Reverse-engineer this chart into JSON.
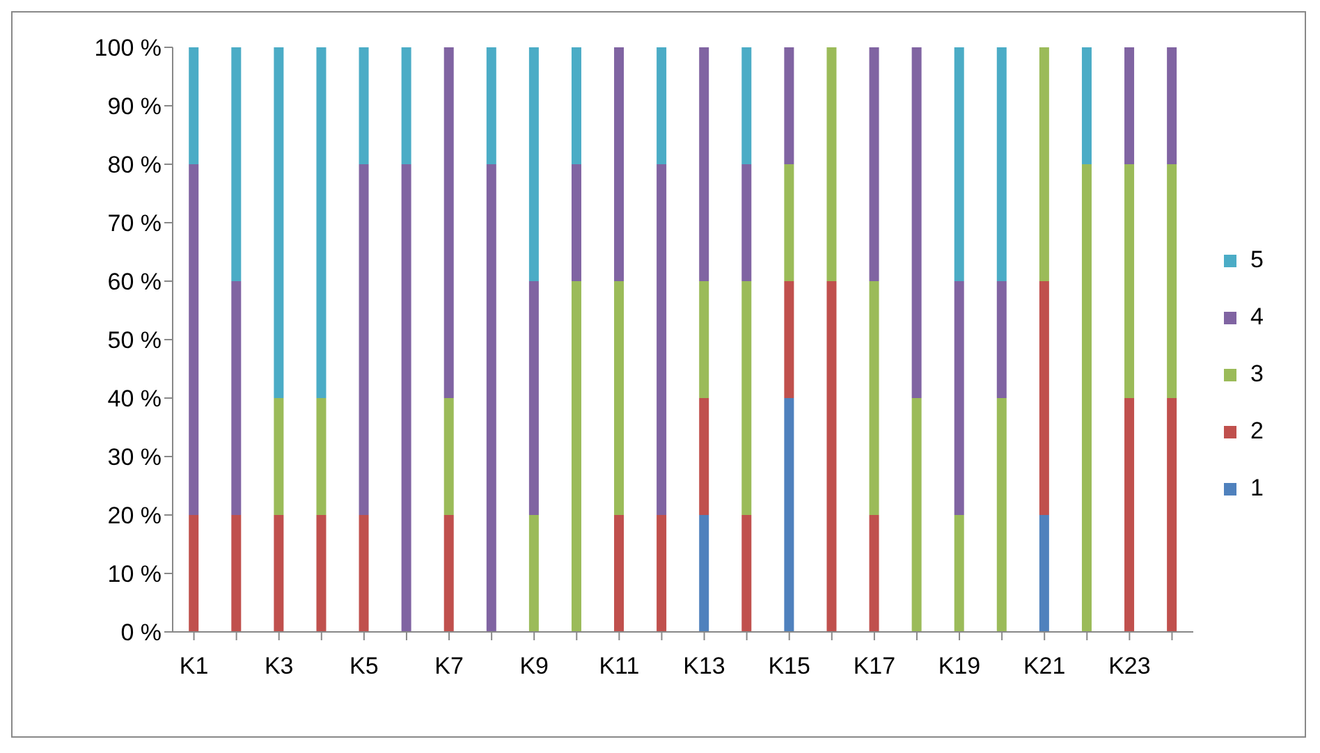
{
  "chart_data": {
    "type": "bar",
    "stacked": true,
    "categories": [
      "K1",
      null,
      "K3",
      null,
      "K5",
      null,
      "K7",
      null,
      "K9",
      null,
      "K11",
      null,
      "K13",
      null,
      "K15",
      null,
      "K17",
      null,
      "K19",
      null,
      "K21",
      null,
      "K23",
      null
    ],
    "series": [
      {
        "name": "1",
        "color": "#4f81bd",
        "values": [
          0,
          0,
          0,
          0,
          0,
          0,
          0,
          0,
          0,
          0,
          0,
          0,
          20,
          0,
          40,
          0,
          0,
          0,
          0,
          0,
          20,
          0,
          0,
          0
        ]
      },
      {
        "name": "2",
        "color": "#c0504d",
        "values": [
          20,
          20,
          20,
          20,
          20,
          0,
          20,
          0,
          0,
          0,
          20,
          20,
          20,
          20,
          20,
          60,
          20,
          0,
          0,
          0,
          40,
          0,
          40,
          40
        ]
      },
      {
        "name": "3",
        "color": "#9bbb59",
        "values": [
          0,
          0,
          20,
          20,
          0,
          0,
          20,
          0,
          20,
          60,
          40,
          0,
          20,
          40,
          20,
          40,
          40,
          40,
          20,
          40,
          40,
          80,
          40,
          40
        ]
      },
      {
        "name": "4",
        "color": "#8064a2",
        "values": [
          60,
          40,
          0,
          0,
          60,
          80,
          60,
          80,
          40,
          20,
          40,
          60,
          40,
          20,
          20,
          0,
          40,
          60,
          40,
          20,
          0,
          0,
          20,
          20
        ]
      },
      {
        "name": "5",
        "color": "#4bacc6",
        "values": [
          20,
          40,
          60,
          60,
          20,
          20,
          0,
          20,
          40,
          20,
          0,
          20,
          0,
          20,
          0,
          0,
          0,
          0,
          40,
          40,
          0,
          20,
          0,
          0
        ]
      }
    ],
    "ylim": [
      0,
      100
    ],
    "yticks": [
      {
        "value": 0,
        "label": "0 %"
      },
      {
        "value": 10,
        "label": "10 %"
      },
      {
        "value": 20,
        "label": "20 %"
      },
      {
        "value": 30,
        "label": "30 %"
      },
      {
        "value": 40,
        "label": "40 %"
      },
      {
        "value": 50,
        "label": "50 %"
      },
      {
        "value": 60,
        "label": "60 %"
      },
      {
        "value": 70,
        "label": "70 %"
      },
      {
        "value": 80,
        "label": "80 %"
      },
      {
        "value": 90,
        "label": "90 %"
      },
      {
        "value": 100,
        "label": "100 %"
      }
    ],
    "grid": false,
    "legend": "right"
  }
}
